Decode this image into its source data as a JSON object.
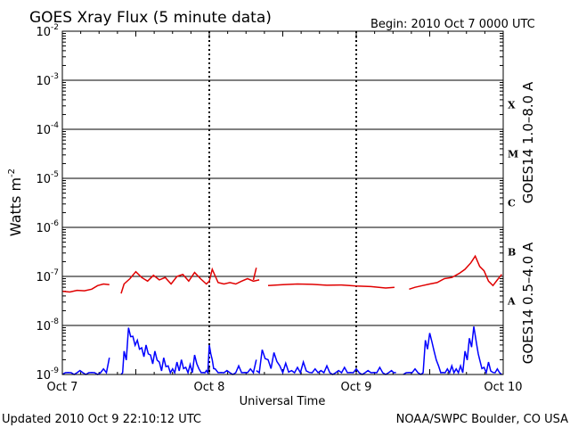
{
  "chart_data": {
    "type": "line",
    "title": "GOES Xray Flux (5 minute data)",
    "begin_label": "Begin:  2010 Oct 7 0000 UTC",
    "ylabel_base": "Watts m",
    "ylabel_exp": "-2",
    "xlabel": "Universal Time",
    "x_ticks": [
      "Oct 7",
      "Oct 8",
      "Oct 9",
      "Oct 10"
    ],
    "y_scale": "log",
    "ylim": [
      1e-09,
      0.01
    ],
    "y_ticks": [
      {
        "base": "10",
        "exp": "-2"
      },
      {
        "base": "10",
        "exp": "-3"
      },
      {
        "base": "10",
        "exp": "-4"
      },
      {
        "base": "10",
        "exp": "-5"
      },
      {
        "base": "10",
        "exp": "-6"
      },
      {
        "base": "10",
        "exp": "-7"
      },
      {
        "base": "10",
        "exp": "-8"
      },
      {
        "base": "10",
        "exp": "-9"
      }
    ],
    "flare_classes": [
      "X",
      "M",
      "C",
      "B",
      "A"
    ],
    "x_unit": "days since 2010 Oct 7 0000 UTC",
    "xlim": [
      0,
      3
    ],
    "series": [
      {
        "name": "GOES14 1.0–8.0 A",
        "color": "#e00000",
        "segments": [
          {
            "x": [
              0.0,
              0.05,
              0.1,
              0.15,
              0.2,
              0.24,
              0.28,
              0.32
            ],
            "y": [
              5e-08,
              4.8e-08,
              5.2e-08,
              5.1e-08,
              5.5e-08,
              6.5e-08,
              7e-08,
              6.8e-08
            ]
          },
          {
            "x": [
              0.4,
              0.42,
              0.46,
              0.5,
              0.54,
              0.58,
              0.62,
              0.66,
              0.7,
              0.74,
              0.78,
              0.82,
              0.86,
              0.9,
              0.94,
              0.98,
              1.0,
              1.02,
              1.06,
              1.1,
              1.14,
              1.18,
              1.22,
              1.26,
              1.3,
              1.34
            ],
            "y": [
              4.5e-08,
              7e-08,
              9e-08,
              1.25e-07,
              9.5e-08,
              8e-08,
              1.05e-07,
              8.5e-08,
              9.5e-08,
              7e-08,
              1e-07,
              1.1e-07,
              8e-08,
              1.2e-07,
              9e-08,
              7e-08,
              8e-08,
              1.4e-07,
              7.5e-08,
              7e-08,
              7.5e-08,
              7e-08,
              8e-08,
              9e-08,
              8e-08,
              8.5e-08
            ]
          },
          {
            "x": [
              1.3,
              1.32
            ],
            "y": [
              8.5e-08,
              1.5e-07
            ]
          },
          {
            "x": [
              1.4,
              1.5,
              1.6,
              1.7,
              1.8,
              1.9,
              2.0,
              2.1,
              2.2,
              2.26
            ],
            "y": [
              6.5e-08,
              6.8e-08,
              7e-08,
              6.9e-08,
              6.6e-08,
              6.7e-08,
              6.4e-08,
              6.2e-08,
              5.8e-08,
              6e-08
            ]
          },
          {
            "x": [
              2.36,
              2.4,
              2.45,
              2.5,
              2.55,
              2.6,
              2.65,
              2.7,
              2.74,
              2.78,
              2.81,
              2.84,
              2.87,
              2.9,
              2.93,
              2.96,
              2.99
            ],
            "y": [
              5.5e-08,
              6e-08,
              6.5e-08,
              7e-08,
              7.5e-08,
              9e-08,
              9.5e-08,
              1.15e-07,
              1.4e-07,
              1.9e-07,
              2.6e-07,
              1.6e-07,
              1.3e-07,
              8e-08,
              6.5e-08,
              8.5e-08,
              1.1e-07
            ]
          }
        ]
      },
      {
        "name": "GOES14 0.5–4.0 A",
        "color": "#0000ff",
        "segments": [
          {
            "x": [
              0.0,
              0.04,
              0.08,
              0.12,
              0.16,
              0.2,
              0.24,
              0.28,
              0.32
            ],
            "y": [
              1e-09,
              1.1e-09,
              1e-09,
              1.2e-09,
              1e-09,
              1.1e-09,
              1e-09,
              1.3e-09,
              2.2e-09
            ]
          },
          {
            "x": [
              0.4,
              0.42,
              0.45,
              0.48,
              0.51,
              0.54,
              0.57,
              0.6,
              0.63,
              0.66,
              0.69,
              0.72,
              0.75,
              0.78,
              0.81,
              0.84,
              0.87,
              0.9,
              0.93,
              0.96,
              0.98,
              1.0,
              1.02,
              1.04,
              1.08,
              1.12,
              1.16,
              1.2,
              1.24,
              1.28,
              1.32
            ],
            "y": [
              1e-09,
              3e-09,
              9e-09,
              6e-09,
              5e-09,
              3.5e-09,
              4e-09,
              2.5e-09,
              3e-09,
              1.8e-09,
              2.2e-09,
              1.5e-09,
              1.3e-09,
              1.8e-09,
              2e-09,
              1.4e-09,
              1.6e-09,
              2.5e-09,
              1.3e-09,
              1.1e-09,
              1.2e-09,
              4e-09,
              2e-09,
              1.3e-09,
              1.1e-09,
              1.2e-09,
              1e-09,
              1.5e-09,
              1.1e-09,
              1.3e-09,
              2e-09
            ]
          },
          {
            "x": [
              1.32,
              1.36,
              1.4,
              1.44,
              1.48,
              1.52,
              1.56,
              1.6,
              1.64,
              1.68,
              1.72,
              1.76,
              1.8,
              1.84,
              1.88,
              1.92,
              1.96,
              2.0,
              2.04,
              2.08,
              2.12,
              2.16,
              2.2,
              2.24,
              2.27
            ],
            "y": [
              1.2e-09,
              3.2e-09,
              2e-09,
              2.8e-09,
              1.5e-09,
              1.7e-09,
              1.2e-09,
              1.4e-09,
              1.8e-09,
              1.1e-09,
              1.3e-09,
              1.2e-09,
              1.5e-09,
              1e-09,
              1.2e-09,
              1.4e-09,
              1.1e-09,
              1.3e-09,
              1e-09,
              1.2e-09,
              1.1e-09,
              1.4e-09,
              1e-09,
              1.2e-09,
              1.1e-09
            ]
          },
          {
            "x": [
              2.32,
              2.36,
              2.4,
              2.44,
              2.47,
              2.5,
              2.53,
              2.56,
              2.59,
              2.62,
              2.65,
              2.68,
              2.71,
              2.74,
              2.77,
              2.8,
              2.82,
              2.84,
              2.87,
              2.9,
              2.93,
              2.96,
              2.99
            ],
            "y": [
              1e-09,
              1.1e-09,
              1.3e-09,
              1e-09,
              5e-09,
              7e-09,
              3e-09,
              1.5e-09,
              1.1e-09,
              1.3e-09,
              1.5e-09,
              1.3e-09,
              1.5e-09,
              3e-09,
              5.5e-09,
              9.5e-09,
              4e-09,
              2e-09,
              1.4e-09,
              1.8e-09,
              1.1e-09,
              1.3e-09,
              1e-09
            ]
          }
        ]
      }
    ]
  },
  "footer": {
    "updated": "Updated 2010 Oct  9 22:10:12 UTC",
    "credit": "NOAA/SWPC Boulder, CO USA"
  }
}
